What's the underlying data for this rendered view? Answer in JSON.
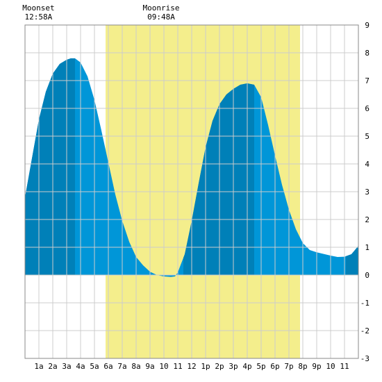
{
  "chart_data": {
    "type": "area",
    "title": "",
    "xlabel": "",
    "ylabel": "",
    "xlim": [
      0,
      24
    ],
    "ylim": [
      -3,
      9
    ],
    "grid": true,
    "x_tick_labels": [
      "1a",
      "2a",
      "3a",
      "4a",
      "5a",
      "6a",
      "7a",
      "8a",
      "9a",
      "10",
      "11",
      "12",
      "1p",
      "2p",
      "3p",
      "4p",
      "5p",
      "6p",
      "7p",
      "8p",
      "9p",
      "10",
      "11"
    ],
    "y_ticks": [
      -3,
      -2,
      -1,
      0,
      1,
      2,
      3,
      4,
      5,
      6,
      7,
      8,
      9
    ],
    "annotations": [
      {
        "name": "moonset",
        "label": "Moonset",
        "time": "12:58A",
        "hour": 0.97
      },
      {
        "name": "moonrise",
        "label": "Moonrise",
        "time": "09:48A",
        "hour": 9.8
      }
    ],
    "daylight": {
      "start_hour": 5.8,
      "end_hour": 19.8
    },
    "dark_bands": [
      [
        0,
        3.6
      ],
      [
        11.4,
        16.5
      ],
      [
        23.1,
        24
      ]
    ],
    "series": [
      {
        "x": [
          0,
          0.5,
          1,
          1.5,
          2,
          2.5,
          3,
          3.3,
          3.6,
          4,
          4.5,
          5,
          5.5,
          6,
          6.5,
          7,
          7.5,
          8,
          8.5,
          9,
          9.5,
          10,
          10.5,
          10.8,
          11,
          11.5,
          12,
          12.5,
          13,
          13.5,
          14,
          14.5,
          15,
          15.5,
          16,
          16.5,
          17,
          17.5,
          18,
          18.5,
          19,
          19.5,
          20,
          20.5,
          21,
          21.5,
          22,
          22.5,
          23,
          23.5,
          24
        ],
        "y": [
          2.8,
          4.2,
          5.6,
          6.6,
          7.25,
          7.6,
          7.75,
          7.8,
          7.8,
          7.65,
          7.15,
          6.3,
          5.2,
          4.05,
          2.9,
          1.95,
          1.2,
          0.65,
          0.35,
          0.12,
          0.0,
          -0.05,
          -0.07,
          -0.05,
          0.1,
          0.75,
          1.95,
          3.3,
          4.6,
          5.55,
          6.15,
          6.5,
          6.7,
          6.85,
          6.9,
          6.85,
          6.4,
          5.4,
          4.3,
          3.25,
          2.35,
          1.65,
          1.15,
          0.9,
          0.82,
          0.76,
          0.7,
          0.65,
          0.66,
          0.75,
          1.05
        ]
      }
    ],
    "colors": {
      "daylight": "#f4ee8c",
      "water": "#0096d8",
      "water_dark": "#0080b8",
      "grid": "#cccccc"
    }
  }
}
